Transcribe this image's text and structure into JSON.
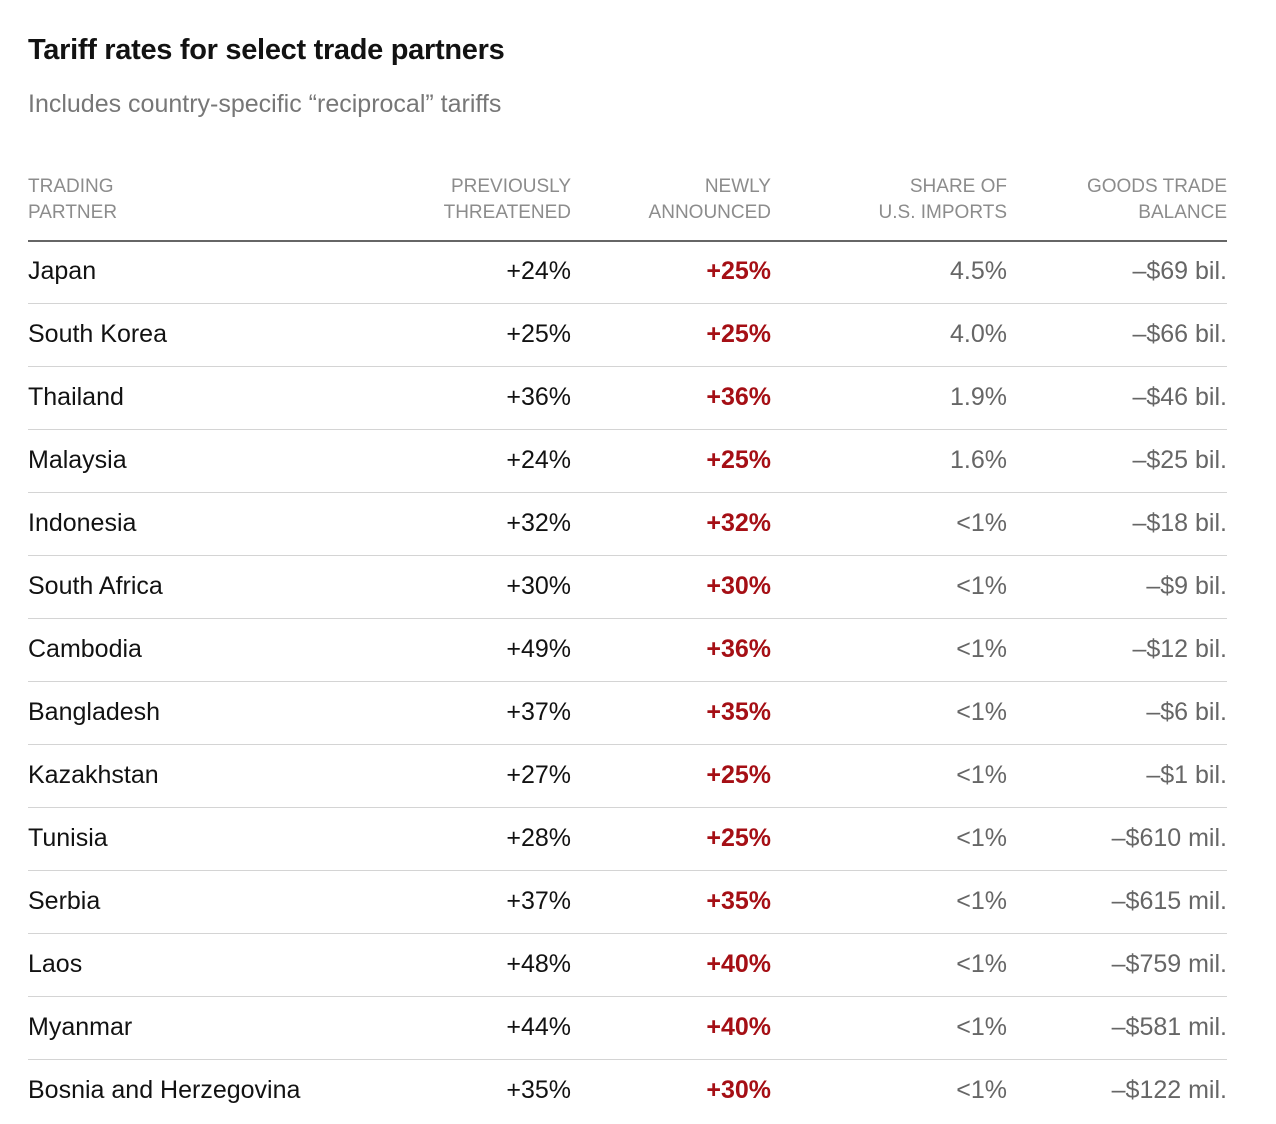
{
  "title": "Tariff rates for select trade partners",
  "subtitle": "Includes country-specific “reciprocal” tariffs",
  "colors": {
    "newly_announced": "#a50f15",
    "header_text": "#8c8c8c",
    "rule": "#666666"
  },
  "chart_data": {
    "type": "table",
    "columns": [
      "TRADING\nPARTNER",
      "PREVIOUSLY\nTHREATENED",
      "NEWLY\nANNOUNCED",
      "SHARE OF\nU.S. IMPORTS",
      "GOODS TRADE\nBALANCE"
    ],
    "rows": [
      [
        "Japan",
        "+24%",
        "+25%",
        "4.5%",
        "–$69 bil."
      ],
      [
        "South Korea",
        "+25%",
        "+25%",
        "4.0%",
        "–$66 bil."
      ],
      [
        "Thailand",
        "+36%",
        "+36%",
        "1.9%",
        "–$46 bil."
      ],
      [
        "Malaysia",
        "+24%",
        "+25%",
        "1.6%",
        "–$25 bil."
      ],
      [
        "Indonesia",
        "+32%",
        "+32%",
        "<1%",
        "–$18 bil."
      ],
      [
        "South Africa",
        "+30%",
        "+30%",
        "<1%",
        "–$9 bil."
      ],
      [
        "Cambodia",
        "+49%",
        "+36%",
        "<1%",
        "–$12 bil."
      ],
      [
        "Bangladesh",
        "+37%",
        "+35%",
        "<1%",
        "–$6 bil."
      ],
      [
        "Kazakhstan",
        "+27%",
        "+25%",
        "<1%",
        "–$1 bil."
      ],
      [
        "Tunisia",
        "+28%",
        "+25%",
        "<1%",
        "–$610 mil."
      ],
      [
        "Serbia",
        "+37%",
        "+35%",
        "<1%",
        "–$615 mil."
      ],
      [
        "Laos",
        "+48%",
        "+40%",
        "<1%",
        "–$759 mil."
      ],
      [
        "Myanmar",
        "+44%",
        "+40%",
        "<1%",
        "–$581 mil."
      ],
      [
        "Bosnia and Herzegovina",
        "+35%",
        "+30%",
        "<1%",
        "–$122 mil."
      ]
    ]
  }
}
